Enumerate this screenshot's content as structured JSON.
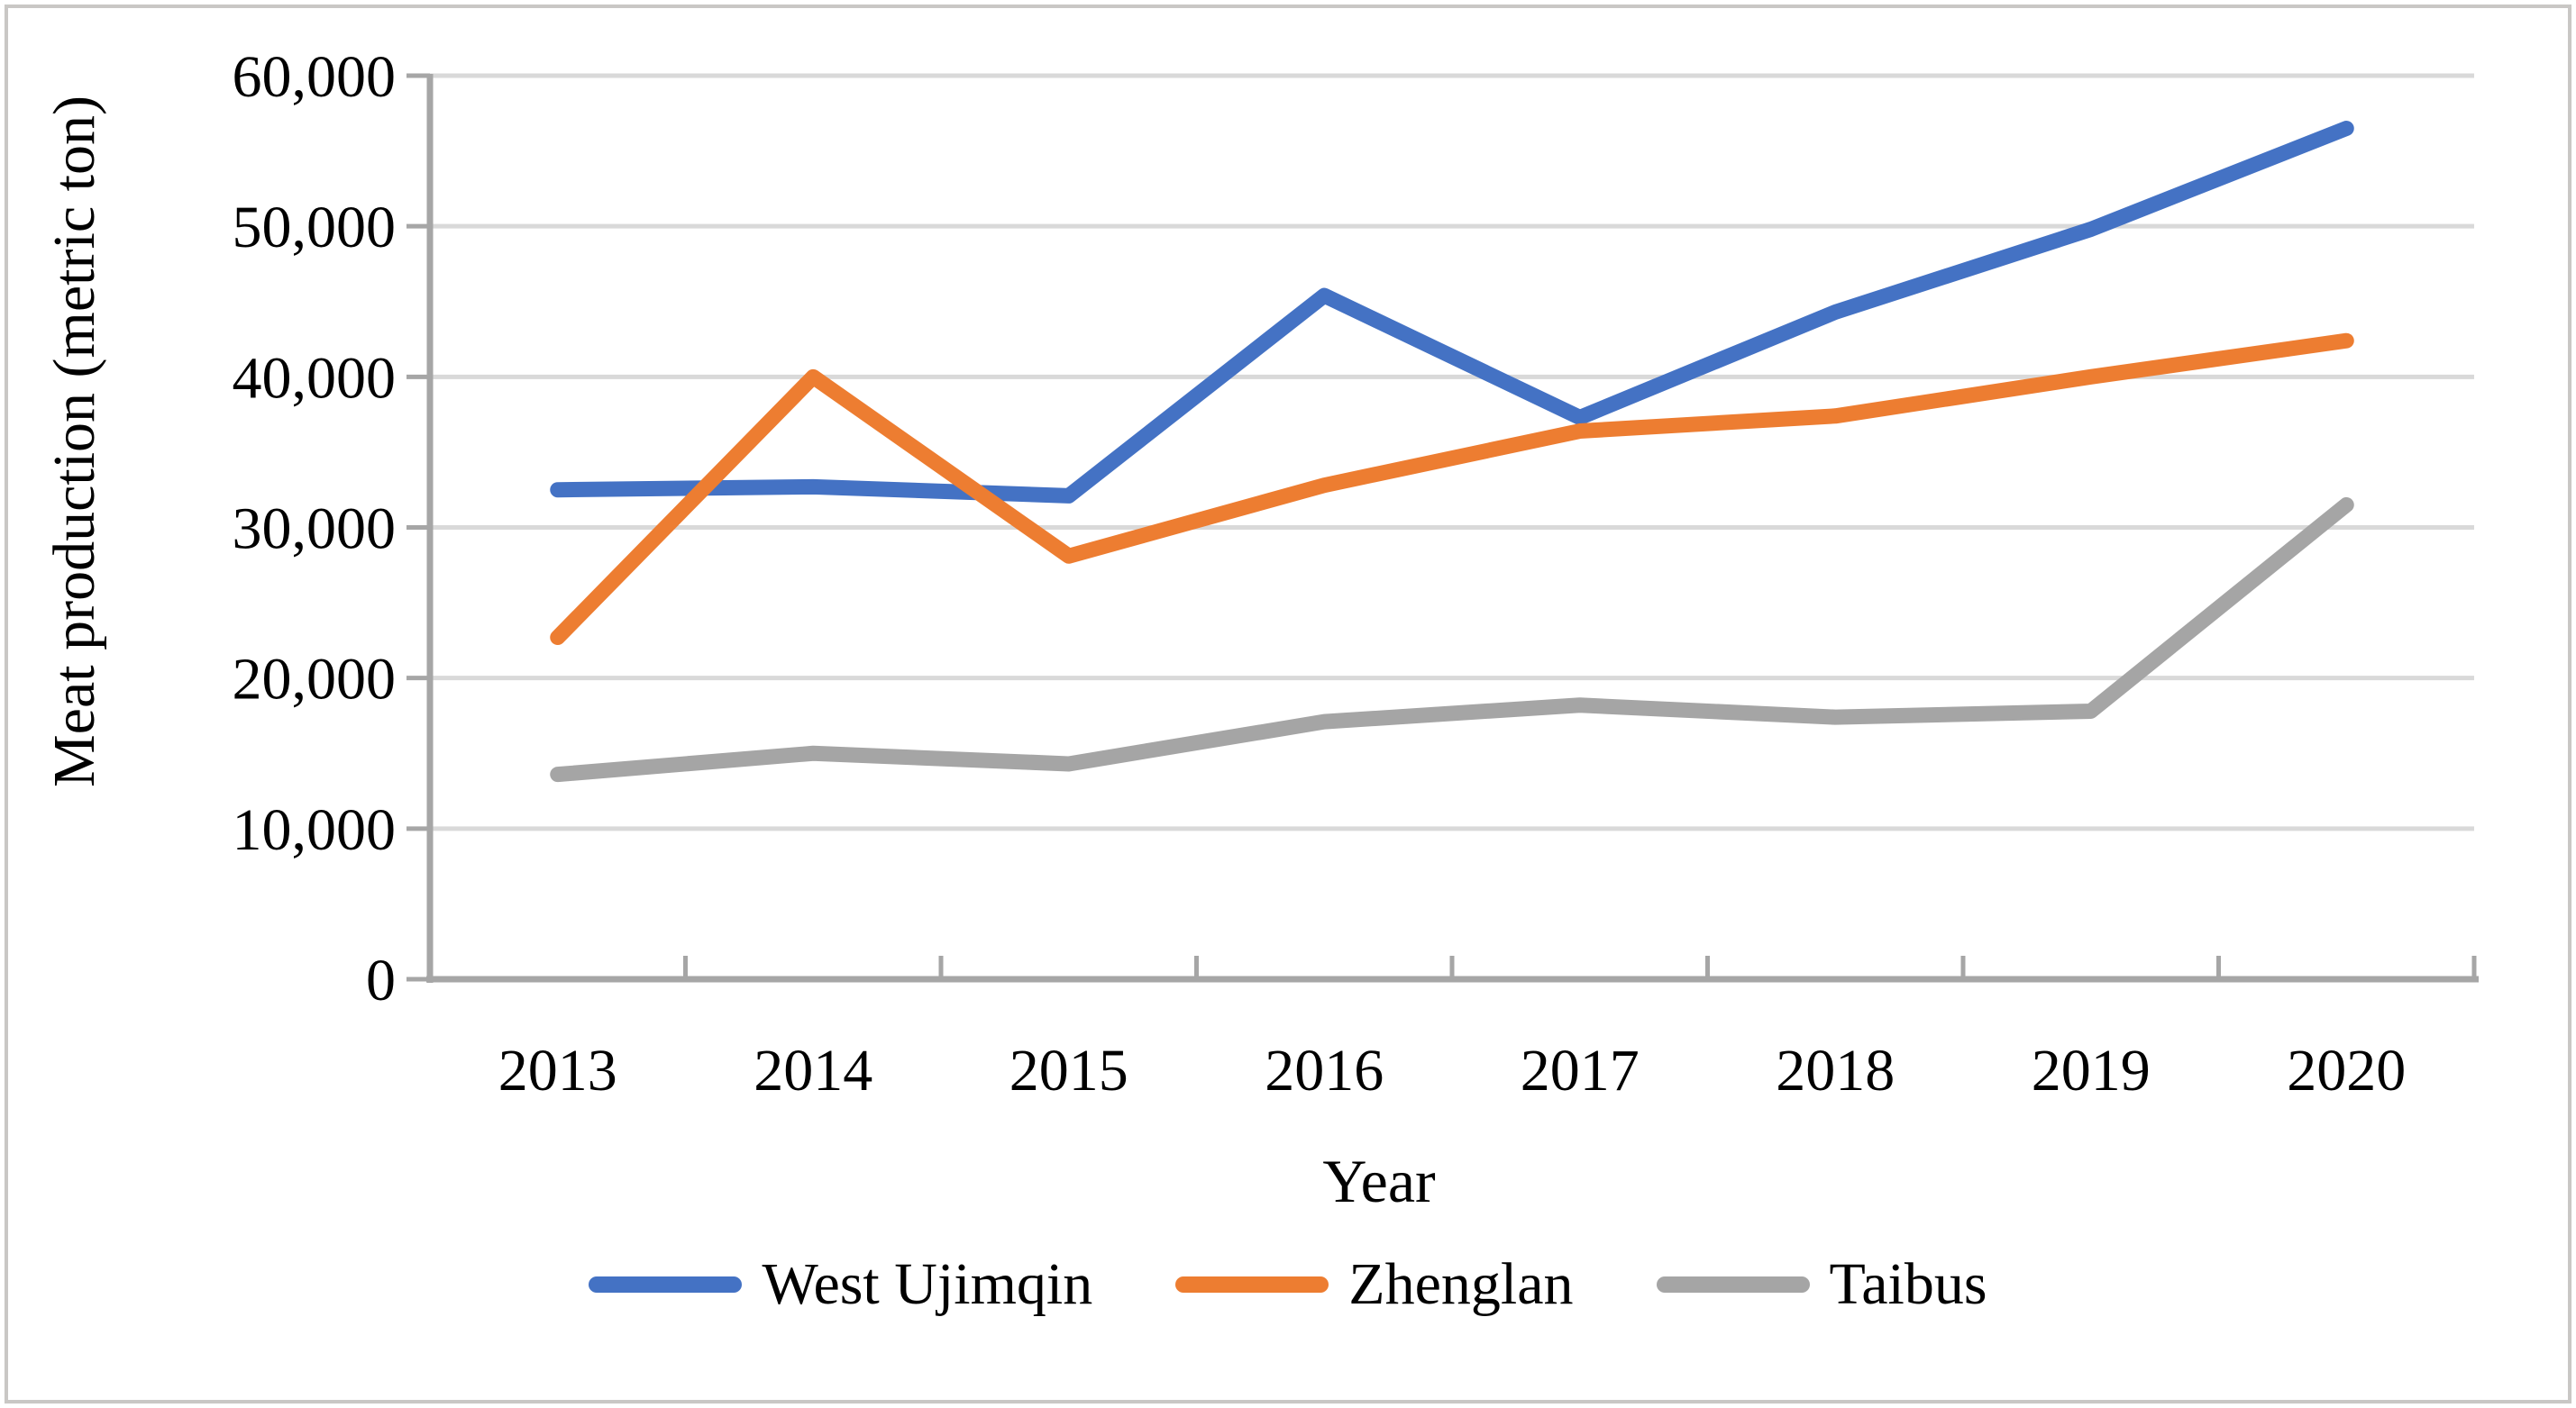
{
  "figure": {
    "background": "#ffffff",
    "border_color": "#c9c7c5"
  },
  "chart_data": {
    "type": "line",
    "title": "",
    "xlabel": "Year",
    "ylabel": "Meat production (metric ton)",
    "categories": [
      "2013",
      "2014",
      "2015",
      "2016",
      "2017",
      "2018",
      "2019",
      "2020"
    ],
    "series": [
      {
        "name": "West Ujimqin",
        "color": "#4472C4",
        "values": [
          32500,
          32700,
          32100,
          45400,
          37300,
          44300,
          49800,
          56500
        ]
      },
      {
        "name": "Zhenglan",
        "color": "#ED7D31",
        "values": [
          22700,
          40000,
          28100,
          32800,
          36400,
          37400,
          40000,
          42400
        ]
      },
      {
        "name": "Taibus",
        "color": "#A5A5A5",
        "values": [
          13600,
          15000,
          14300,
          17100,
          18200,
          17400,
          17800,
          31500
        ]
      }
    ],
    "ylim": [
      0,
      60000
    ],
    "y_tick_step": 10000,
    "y_tick_labels": [
      "0",
      "10,000",
      "20,000",
      "30,000",
      "40,000",
      "50,000",
      "60,000"
    ],
    "grid": "horizontal",
    "gridline_color": "#d9d9d9",
    "axis_color": "#a6a6a6",
    "legend_position": "bottom-center",
    "line_width": 17
  }
}
